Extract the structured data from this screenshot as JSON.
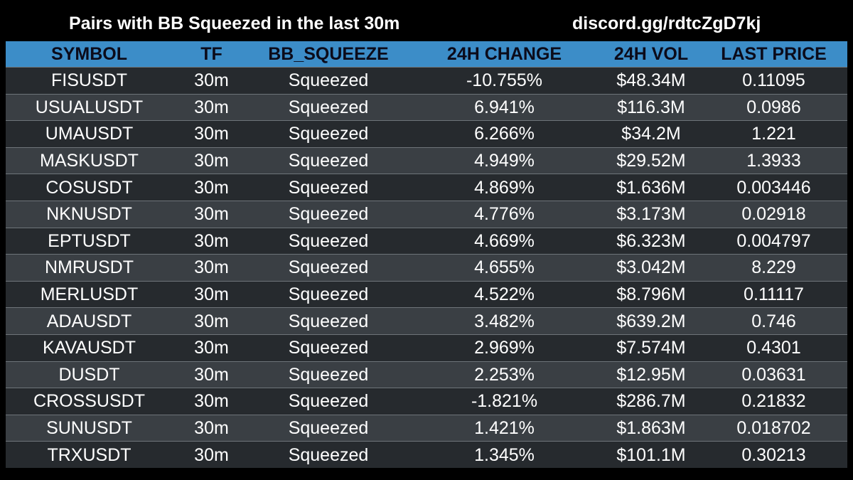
{
  "header": {
    "title": "Pairs with BB Squeezed in the last 30m",
    "link": "discord.gg/rdtcZgD7kj"
  },
  "table": {
    "columns": [
      "SYMBOL",
      "TF",
      "BB_SQUEEZE",
      "24H CHANGE",
      "24H VOL",
      "LAST PRICE"
    ],
    "rows": [
      {
        "symbol": "FISUSDT",
        "tf": "30m",
        "bb": "Squeezed",
        "change": "-10.755%",
        "vol": "$48.34M",
        "price": "0.11095"
      },
      {
        "symbol": "USUALUSDT",
        "tf": "30m",
        "bb": "Squeezed",
        "change": "6.941%",
        "vol": "$116.3M",
        "price": "0.0986"
      },
      {
        "symbol": "UMAUSDT",
        "tf": "30m",
        "bb": "Squeezed",
        "change": "6.266%",
        "vol": "$34.2M",
        "price": "1.221"
      },
      {
        "symbol": "MASKUSDT",
        "tf": "30m",
        "bb": "Squeezed",
        "change": "4.949%",
        "vol": "$29.52M",
        "price": "1.3933"
      },
      {
        "symbol": "COSUSDT",
        "tf": "30m",
        "bb": "Squeezed",
        "change": "4.869%",
        "vol": "$1.636M",
        "price": "0.003446"
      },
      {
        "symbol": "NKNUSDT",
        "tf": "30m",
        "bb": "Squeezed",
        "change": "4.776%",
        "vol": "$3.173M",
        "price": "0.02918"
      },
      {
        "symbol": "EPTUSDT",
        "tf": "30m",
        "bb": "Squeezed",
        "change": "4.669%",
        "vol": "$6.323M",
        "price": "0.004797"
      },
      {
        "symbol": "NMRUSDT",
        "tf": "30m",
        "bb": "Squeezed",
        "change": "4.655%",
        "vol": "$3.042M",
        "price": "8.229"
      },
      {
        "symbol": "MERLUSDT",
        "tf": "30m",
        "bb": "Squeezed",
        "change": "4.522%",
        "vol": "$8.796M",
        "price": "0.11117"
      },
      {
        "symbol": "ADAUSDT",
        "tf": "30m",
        "bb": "Squeezed",
        "change": "3.482%",
        "vol": "$639.2M",
        "price": "0.746"
      },
      {
        "symbol": "KAVAUSDT",
        "tf": "30m",
        "bb": "Squeezed",
        "change": "2.969%",
        "vol": "$7.574M",
        "price": "0.4301"
      },
      {
        "symbol": "DUSDT",
        "tf": "30m",
        "bb": "Squeezed",
        "change": "2.253%",
        "vol": "$12.95M",
        "price": "0.03631"
      },
      {
        "symbol": "CROSSUSDT",
        "tf": "30m",
        "bb": "Squeezed",
        "change": "-1.821%",
        "vol": "$286.7M",
        "price": "0.21832"
      },
      {
        "symbol": "SUNUSDT",
        "tf": "30m",
        "bb": "Squeezed",
        "change": "1.421%",
        "vol": "$1.863M",
        "price": "0.018702"
      },
      {
        "symbol": "TRXUSDT",
        "tf": "30m",
        "bb": "Squeezed",
        "change": "1.345%",
        "vol": "$101.1M",
        "price": "0.30213"
      }
    ]
  },
  "colors": {
    "background": "#000000",
    "header_bg": "#3c8dc8",
    "header_text": "#0b0b1a",
    "row_dark": "#262a2e",
    "row_light": "#3a3f44",
    "text": "#ffffff"
  }
}
